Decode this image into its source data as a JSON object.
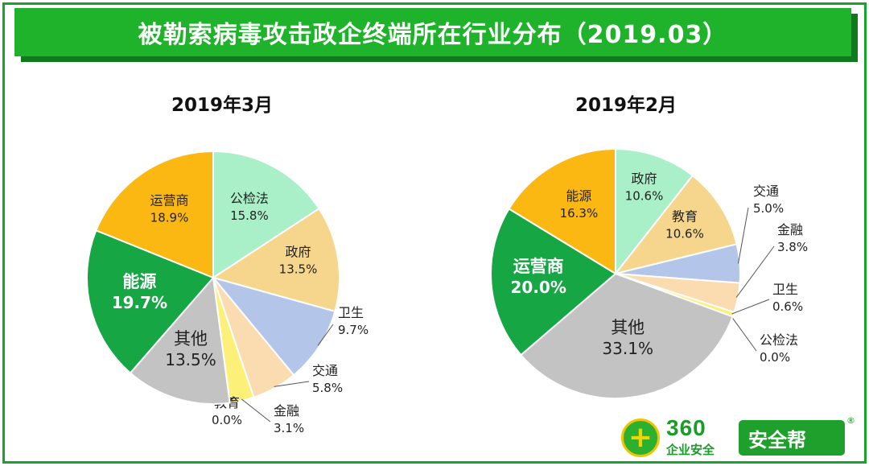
{
  "title": "被勒索病毒攻击政企终端所在行业分布（2019.03）",
  "chart_data": [
    {
      "type": "pie",
      "title": "2019年3月",
      "slices": [
        {
          "label": "公检法",
          "value": 15.8,
          "display": "15.8%",
          "color": "#a9f0c8"
        },
        {
          "label": "政府",
          "value": 13.5,
          "display": "13.5%",
          "color": "#f6d68c"
        },
        {
          "label": "卫生",
          "value": 9.7,
          "display": "9.7%",
          "color": "#b3c6ea"
        },
        {
          "label": "交通",
          "value": 5.8,
          "display": "5.8%",
          "color": "#fbdcb0"
        },
        {
          "label": "金融",
          "value": 3.1,
          "display": "3.1%",
          "color": "#fdf079"
        },
        {
          "label": "教育",
          "value": 0.0,
          "display": "0.0%",
          "color": "#ead796"
        },
        {
          "label": "其他",
          "value": 13.5,
          "display": "13.5%",
          "color": "#c3c3c3"
        },
        {
          "label": "能源",
          "value": 19.7,
          "display": "19.7%",
          "color": "#16a644"
        },
        {
          "label": "运营商",
          "value": 18.9,
          "display": "18.9%",
          "color": "#fbb812"
        }
      ]
    },
    {
      "type": "pie",
      "title": "2019年2月",
      "slices": [
        {
          "label": "政府",
          "value": 10.6,
          "display": "10.6%",
          "color": "#a9f0c8"
        },
        {
          "label": "教育",
          "value": 10.6,
          "display": "10.6%",
          "color": "#f6d68c"
        },
        {
          "label": "交通",
          "value": 5.0,
          "display": "5.0%",
          "color": "#b3c6ea"
        },
        {
          "label": "金融",
          "value": 3.8,
          "display": "3.8%",
          "color": "#fbdcb0"
        },
        {
          "label": "卫生",
          "value": 0.6,
          "display": "0.6%",
          "color": "#fdf079"
        },
        {
          "label": "公检法",
          "value": 0.0,
          "display": "0.0%",
          "color": "#ead796"
        },
        {
          "label": "其他",
          "value": 33.1,
          "display": "33.1%",
          "color": "#c3c3c3"
        },
        {
          "label": "运营商",
          "value": 20.0,
          "display": "20.0%",
          "color": "#16a644"
        },
        {
          "label": "能源",
          "value": 16.3,
          "display": "16.3%",
          "color": "#fbb812"
        }
      ]
    }
  ],
  "logo": {
    "brand_number": "360",
    "brand_sub": "企业安全",
    "badge": "安全帮",
    "plus_symbol": "+",
    "registered": "®"
  }
}
